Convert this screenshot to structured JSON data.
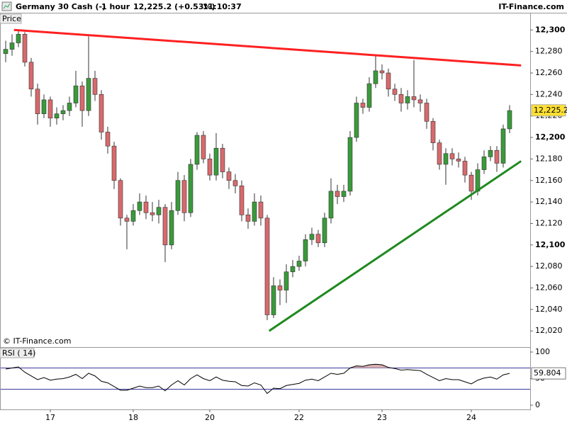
{
  "header": {
    "instrument": "Germany 30 Cash (-)",
    "period": "1 hour",
    "quote": "12,225.2 (+0.53%)",
    "time": "11:10:37",
    "brand": "IT-Finance.com"
  },
  "chart_data": [
    {
      "type": "candlestick",
      "panel_label": "Price",
      "credit": "© IT-Finance.com",
      "categories": [
        null,
        null,
        null,
        null,
        null,
        null,
        null,
        "17",
        null,
        null,
        null,
        null,
        null,
        null,
        null,
        null,
        null,
        null,
        null,
        null,
        "18",
        null,
        null,
        null,
        null,
        null,
        null,
        null,
        null,
        null,
        null,
        null,
        "20",
        null,
        null,
        null,
        null,
        null,
        null,
        null,
        null,
        null,
        null,
        null,
        null,
        null,
        "22",
        null,
        null,
        null,
        null,
        null,
        null,
        null,
        null,
        null,
        null,
        null,
        null,
        "23",
        null,
        null,
        null,
        null,
        null,
        null,
        null,
        null,
        null,
        null,
        null,
        null,
        null,
        "24",
        null,
        null,
        null,
        null,
        null,
        null
      ],
      "open": [
        12278,
        12282,
        12288,
        12296,
        12270,
        12245,
        12222,
        12235,
        12218,
        12222,
        12225,
        12232,
        12248,
        12225,
        12255,
        12240,
        12205,
        12192,
        12160,
        12125,
        12122,
        12132,
        12140,
        12130,
        12128,
        12135,
        12100,
        12132,
        12160,
        12130,
        12175,
        12202,
        12180,
        12165,
        12190,
        12168,
        12160,
        12155,
        12128,
        12122,
        12140,
        12125,
        12035,
        12062,
        12058,
        12075,
        12080,
        12085,
        12105,
        12110,
        12102,
        12125,
        12150,
        12145,
        12150,
        12200,
        12232,
        12228,
        12250,
        12262,
        12260,
        12245,
        12240,
        12232,
        12238,
        12235,
        12232,
        12215,
        12195,
        12175,
        12185,
        12180,
        12178,
        12165,
        12150,
        12170,
        12182,
        12188,
        12176,
        12208
      ],
      "high": [
        12290,
        12296,
        12300,
        12298,
        12274,
        12250,
        12240,
        12238,
        12228,
        12230,
        12238,
        12262,
        12252,
        12294,
        12262,
        12244,
        12210,
        12196,
        12162,
        12128,
        12138,
        12148,
        12146,
        12140,
        12142,
        12138,
        12140,
        12168,
        12165,
        12180,
        12205,
        12206,
        12185,
        12204,
        12194,
        12172,
        12166,
        12160,
        12134,
        12148,
        12146,
        12128,
        12070,
        12068,
        12082,
        12086,
        12090,
        12110,
        12116,
        12114,
        12130,
        12162,
        12156,
        12156,
        12206,
        12238,
        12236,
        12256,
        12276,
        12268,
        12264,
        12250,
        12246,
        12244,
        12272,
        12240,
        12236,
        12218,
        12198,
        12190,
        12190,
        12186,
        12182,
        12168,
        12176,
        12188,
        12192,
        12192,
        12212,
        12230
      ],
      "low": [
        12270,
        12276,
        12284,
        12266,
        12238,
        12212,
        12218,
        12210,
        12212,
        12216,
        12220,
        12228,
        12210,
        12220,
        12234,
        12198,
        12185,
        12152,
        12118,
        12096,
        12118,
        12128,
        12124,
        12122,
        12120,
        12084,
        12096,
        12128,
        12122,
        12126,
        12170,
        12176,
        12160,
        12160,
        12162,
        12152,
        12148,
        12122,
        12115,
        12118,
        12118,
        12030,
        12032,
        12044,
        12046,
        12070,
        12076,
        12080,
        12100,
        12098,
        12098,
        12120,
        12138,
        12140,
        12146,
        12196,
        12222,
        12224,
        12246,
        12254,
        12238,
        12234,
        12224,
        12226,
        12228,
        12224,
        12208,
        12188,
        12170,
        12156,
        12174,
        12172,
        12158,
        12142,
        12146,
        12166,
        12178,
        12168,
        12172,
        12204
      ],
      "close": [
        12282,
        12288,
        12296,
        12270,
        12245,
        12222,
        12235,
        12218,
        12222,
        12225,
        12232,
        12248,
        12225,
        12255,
        12240,
        12205,
        12192,
        12160,
        12125,
        12122,
        12132,
        12140,
        12130,
        12128,
        12135,
        12100,
        12132,
        12160,
        12130,
        12175,
        12202,
        12180,
        12165,
        12190,
        12168,
        12160,
        12155,
        12128,
        12122,
        12140,
        12125,
        12035,
        12062,
        12058,
        12075,
        12080,
        12085,
        12105,
        12110,
        12102,
        12125,
        12150,
        12145,
        12150,
        12200,
        12232,
        12228,
        12250,
        12262,
        12260,
        12245,
        12240,
        12232,
        12238,
        12235,
        12232,
        12215,
        12195,
        12175,
        12185,
        12180,
        12178,
        12165,
        12150,
        12170,
        12182,
        12188,
        12176,
        12208,
        12225
      ],
      "up_color": "#3a9a3a",
      "down_color": "#d8696c",
      "ylim": [
        12005,
        12316
      ],
      "yticks": [
        {
          "value": 12020,
          "label": "12,020"
        },
        {
          "value": 12040,
          "label": "12,040"
        },
        {
          "value": 12060,
          "label": "12,060"
        },
        {
          "value": 12080,
          "label": "12,080"
        },
        {
          "value": 12100,
          "label": "12,100"
        },
        {
          "value": 12120,
          "label": "12,120"
        },
        {
          "value": 12140,
          "label": "12,140"
        },
        {
          "value": 12160,
          "label": "12,160"
        },
        {
          "value": 12180,
          "label": "12,180"
        },
        {
          "value": 12200,
          "label": "12,200"
        },
        {
          "value": 12220,
          "label": "12,220"
        },
        {
          "value": 12240,
          "label": "12,240"
        },
        {
          "value": 12260,
          "label": "12,260"
        },
        {
          "value": 12280,
          "label": "12,280"
        },
        {
          "value": 12300,
          "label": "12,300"
        }
      ],
      "last_price": {
        "value": 12225.2,
        "label": "12,225.2"
      },
      "trendlines": [
        {
          "color": "#ff2020",
          "x": [
            1.3,
            80.8
          ],
          "values": [
            12300,
            12267
          ]
        },
        {
          "color": "#1f8a1f",
          "x": [
            41.3,
            80.8
          ],
          "values": [
            12020,
            12178
          ]
        }
      ]
    },
    {
      "type": "line",
      "panel_label": "RSI ( 14)",
      "color": "#000000",
      "level_color": "#3a3aa0",
      "fill_color": "#d9b0b0",
      "values": [
        68,
        70,
        72,
        62,
        55,
        48,
        52,
        47,
        49,
        50,
        53,
        58,
        50,
        60,
        55,
        45,
        42,
        35,
        28,
        28,
        32,
        36,
        33,
        33,
        36,
        27,
        38,
        46,
        38,
        50,
        57,
        50,
        46,
        53,
        47,
        45,
        44,
        37,
        36,
        42,
        38,
        22,
        32,
        31,
        37,
        39,
        41,
        47,
        49,
        46,
        53,
        60,
        58,
        60,
        70,
        74,
        73,
        76,
        77,
        76,
        71,
        69,
        66,
        67,
        66,
        65,
        58,
        52,
        46,
        50,
        48,
        48,
        44,
        40,
        47,
        51,
        53,
        49,
        57,
        59.804
      ],
      "levels": [
        30,
        70
      ],
      "ylim": [
        -8,
        109.3
      ],
      "yticks": [
        0,
        50,
        100
      ]
    }
  ]
}
